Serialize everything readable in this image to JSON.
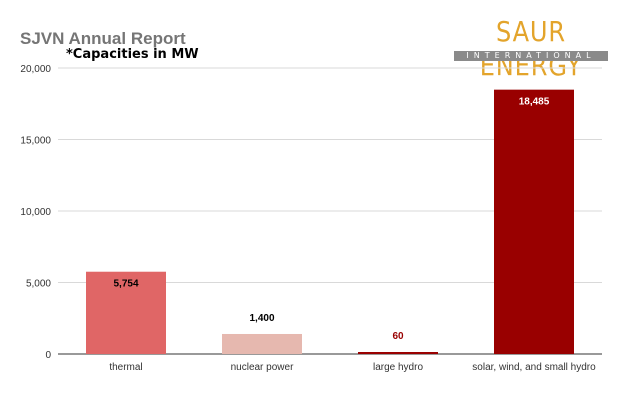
{
  "header": {
    "title": "SJVN Annual Report",
    "subtitle": "*Capacities in MW"
  },
  "logo": {
    "main": "SAUR ENERGY",
    "sub": "INTERNATIONAL"
  },
  "chart_data": {
    "type": "bar",
    "title": "SJVN Annual Report",
    "subtitle": "*Capacities in MW",
    "xlabel": "",
    "ylabel": "",
    "categories": [
      "thermal",
      "nuclear power",
      "large hydro",
      "solar, wind, and small hydro"
    ],
    "values": [
      5754,
      1400,
      60,
      18485
    ],
    "data_labels": [
      "5,754",
      "1,400",
      "60",
      "18,485"
    ],
    "bar_colors": [
      "#e06666",
      "#e6b8af",
      "#990000",
      "#990000"
    ],
    "label_colors": [
      "#000000",
      "#000000",
      "#990000",
      "#ffffff"
    ],
    "ylim": [
      0,
      20000
    ],
    "yticks": [
      0,
      5000,
      10000,
      15000,
      20000
    ],
    "ytick_labels": [
      "0",
      "5,000",
      "10,000",
      "15,000",
      "20,000"
    ],
    "grid": true,
    "legend": "none"
  }
}
